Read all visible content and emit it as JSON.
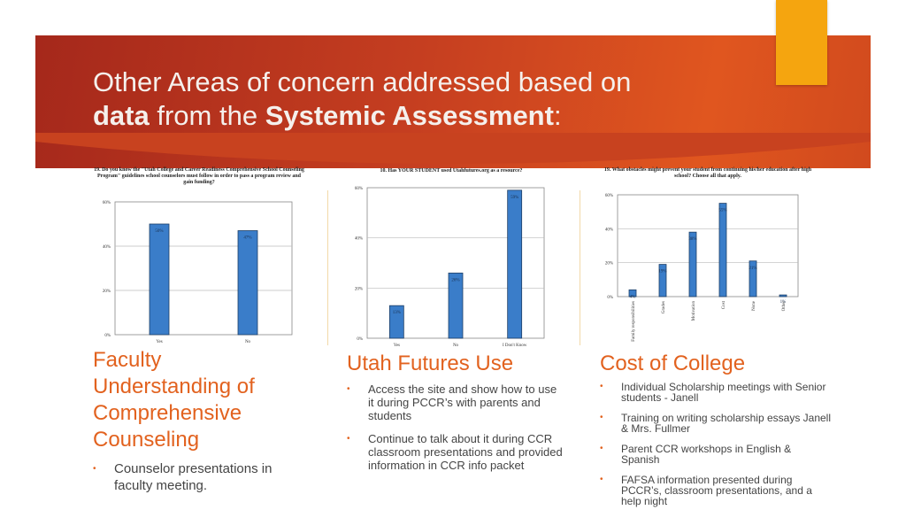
{
  "slide": {
    "title_line1": "Other Areas of concern addressed based on",
    "title_data": "data",
    "title_from": " from the ",
    "title_systemic": "Systemic Assessment",
    "title_colon": ":"
  },
  "columns": [
    {
      "heading": "Faculty Understanding of Comprehensive Counseling",
      "bullets": [
        "Counselor presentations in faculty meeting."
      ]
    },
    {
      "heading": "Utah Futures Use",
      "bullets": [
        "Access the site and show how to use it during PCCR’s with parents and students",
        "Continue to talk about it during CCR classroom presentations and provided information in CCR info packet"
      ]
    },
    {
      "heading": "Cost of College",
      "bullets": [
        "Individual Scholarship meetings with Senior students - Janell",
        "Training on writing scholarship essays Janell & Mrs. Fullmer",
        "Parent CCR workshops in English & Spanish",
        "FAFSA information presented during PCCR’s, classroom presentations, and a help night"
      ]
    }
  ],
  "chart_data": [
    {
      "type": "bar",
      "title": "19. Do you know the \"Utah College and Career Readiness Comprehensive School Counseling Program\" guidelines school counselors must follow in order to pass a program review and gain funding?",
      "categories": [
        "Yes",
        "No"
      ],
      "values": [
        50,
        47
      ],
      "value_labels": [
        "50%",
        "47%"
      ],
      "yticks": [
        "0%",
        "20%",
        "40%",
        "60%"
      ],
      "ylim": [
        0,
        60
      ]
    },
    {
      "type": "bar",
      "title": "10. Has YOUR STUDENT used Utahfutures.org as a resource?",
      "categories": [
        "Yes",
        "No",
        "I Don't Know"
      ],
      "values": [
        13,
        26,
        59
      ],
      "value_labels": [
        "13%",
        "26%",
        "59%"
      ],
      "yticks": [
        "0%",
        "20%",
        "40%",
        "60%"
      ],
      "ylim": [
        0,
        60
      ]
    },
    {
      "type": "bar",
      "title": "19. What obstacles might prevent your student from continuing his/her education after high school? Choose all that apply.",
      "categories": [
        "Family responsibilities",
        "Grades",
        "Motivation",
        "Cost",
        "None",
        "Other"
      ],
      "values": [
        4,
        19,
        38,
        55,
        21,
        1
      ],
      "value_labels": [
        "4%",
        "19%",
        "38%",
        "55%",
        "21%",
        "1%"
      ],
      "yticks": [
        "0%",
        "20%",
        "40%",
        "60%"
      ],
      "ylim": [
        0,
        60
      ]
    }
  ],
  "colors": {
    "bar": "#3a7dc9",
    "accent": "#e2621f",
    "banner": "#c53e20",
    "tab": "#f5a50f"
  }
}
